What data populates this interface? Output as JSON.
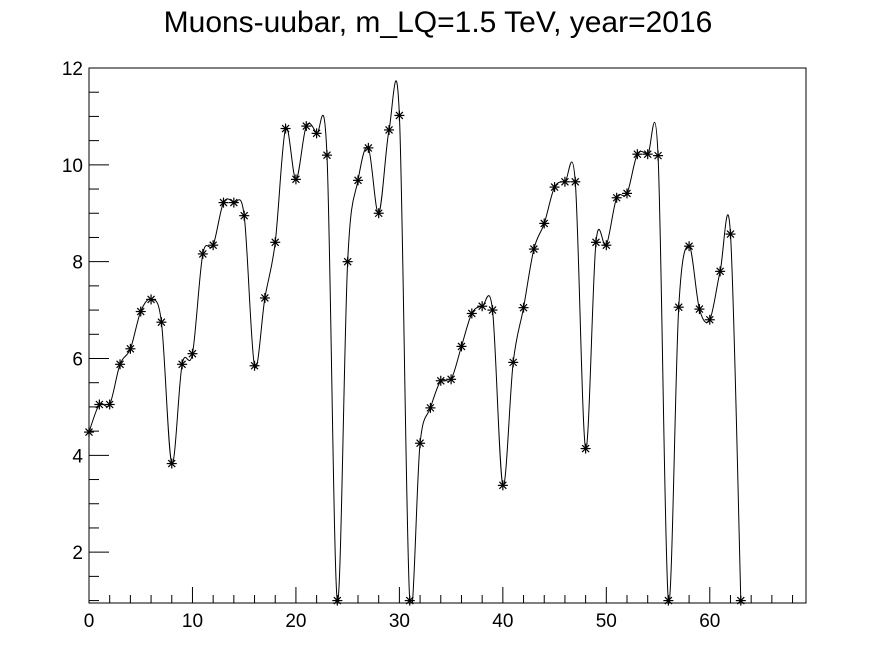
{
  "chart_data": {
    "type": "line",
    "title": "Muons-uubar, m_LQ=1.5 TeV, year=2016",
    "xlabel": "",
    "ylabel": "",
    "xlim": [
      0,
      69.3
    ],
    "ylim": [
      0.95,
      12
    ],
    "x_ticks": [
      0,
      10,
      20,
      30,
      40,
      50,
      60
    ],
    "y_ticks": [
      2,
      4,
      6,
      8,
      10,
      12
    ],
    "grid": false,
    "legend": "none",
    "marker": "asterisk",
    "line_style": "smooth",
    "color": "#000000",
    "series": [
      {
        "x": [
          0,
          1,
          2,
          3,
          4,
          5,
          6,
          7,
          8,
          9,
          10,
          11,
          12,
          13,
          14,
          15,
          16,
          17,
          18,
          19,
          20,
          21,
          22,
          23,
          24,
          25,
          26,
          27,
          28,
          29,
          30,
          31,
          32,
          33,
          34,
          35,
          36,
          37,
          38,
          39,
          40,
          41,
          42,
          43,
          44,
          45,
          46,
          47,
          48,
          49,
          50,
          51,
          52,
          53,
          54,
          55,
          56,
          57,
          58,
          59,
          60,
          61,
          62,
          63
        ],
        "y": [
          4.48,
          5.05,
          5.05,
          5.88,
          6.2,
          6.97,
          7.22,
          6.75,
          3.83,
          5.88,
          6.1,
          8.16,
          8.34,
          9.22,
          9.22,
          8.95,
          5.85,
          7.25,
          8.4,
          10.75,
          9.7,
          10.8,
          10.65,
          10.2,
          1.0,
          8.0,
          9.68,
          10.35,
          9.0,
          10.72,
          11.02,
          1.0,
          4.25,
          4.98,
          5.54,
          5.57,
          6.25,
          6.93,
          7.08,
          7.0,
          3.38,
          5.92,
          7.05,
          8.26,
          8.79,
          9.54,
          9.65,
          9.65,
          4.14,
          8.4,
          8.34,
          9.32,
          9.41,
          10.22,
          10.22,
          10.19,
          1.0,
          7.06,
          8.32,
          7.02,
          6.8,
          7.8,
          8.57,
          1.0
        ]
      }
    ]
  }
}
